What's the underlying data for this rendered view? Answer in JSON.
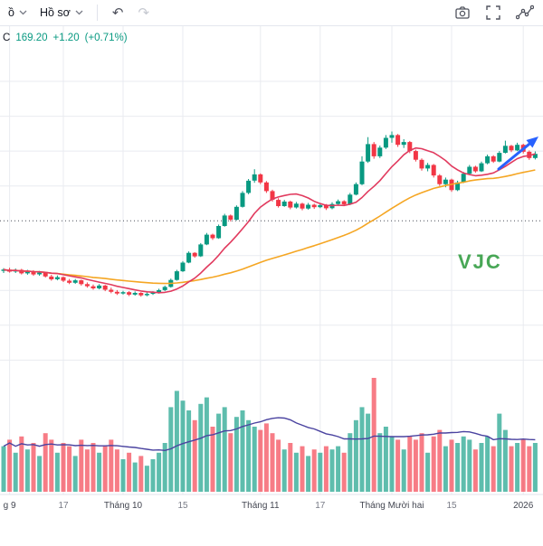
{
  "toolbar": {
    "menus": [
      {
        "label": "ồ"
      },
      {
        "label": "Hồ sơ"
      }
    ],
    "undo_icon": "↶",
    "redo_icon": "↷",
    "right_icons": [
      "screenshot-icon",
      "fullscreen-icon",
      "drawing-tools-icon"
    ]
  },
  "legend": {
    "close_label": "C",
    "close": "169.20",
    "change": "+1.20",
    "change_pct": "(+0.71%)",
    "color": "#089981"
  },
  "watermark": "VJC",
  "chart_data": {
    "type": "candlestick",
    "symbol": "VJC",
    "last_close": 169.2,
    "change": 1.2,
    "change_pct": 0.71,
    "price_line": 150,
    "h_gridlines": [
      110,
      120,
      130,
      140,
      160,
      170,
      180,
      190
    ],
    "x_ticks": [
      {
        "index": 1,
        "label": "g 9",
        "major": true
      },
      {
        "index": 10,
        "label": "17",
        "major": false
      },
      {
        "index": 20,
        "label": "Tháng 10",
        "major": true
      },
      {
        "index": 30,
        "label": "15",
        "major": false
      },
      {
        "index": 43,
        "label": "Tháng 11",
        "major": true
      },
      {
        "index": 53,
        "label": "17",
        "major": false
      },
      {
        "index": 65,
        "label": "Tháng Mười hai",
        "major": true
      },
      {
        "index": 75,
        "label": "15",
        "major": false
      },
      {
        "index": 87,
        "label": "2026",
        "major": true
      }
    ],
    "overlays": {
      "ma_fast": {
        "window": 10,
        "color": "#e13a5e"
      },
      "ma_slow": {
        "window": 40,
        "color": "#f5a623"
      },
      "vol_ma": {
        "window": 20,
        "color": "#4a43a0"
      }
    },
    "colors": {
      "up": "#089981",
      "down": "#f23645",
      "grid": "#e9ebf0",
      "dotted": "#4a4e59",
      "watermark": "#3fa34d",
      "arrow": "#2962ff",
      "tick_minor": "#787b86",
      "tick_major": "#434651",
      "axis_line": "#e0e3eb"
    },
    "candles": [
      [
        135.6,
        136.4,
        135.0,
        136.0,
        1.4
      ],
      [
        136.0,
        136.5,
        135.1,
        135.4,
        1.6
      ],
      [
        135.4,
        136.3,
        135.0,
        135.9,
        1.2
      ],
      [
        135.9,
        136.2,
        134.6,
        134.9,
        1.7
      ],
      [
        134.9,
        135.9,
        134.5,
        135.5,
        1.3
      ],
      [
        135.5,
        135.8,
        134.2,
        134.6,
        1.5
      ],
      [
        134.6,
        135.6,
        134.2,
        135.1,
        1.1
      ],
      [
        135.1,
        135.4,
        133.7,
        134.0,
        1.8
      ],
      [
        134.0,
        134.5,
        132.8,
        133.2,
        1.6
      ],
      [
        133.2,
        134.3,
        132.9,
        133.8,
        1.2
      ],
      [
        133.8,
        134.0,
        132.4,
        132.8,
        1.5
      ],
      [
        132.8,
        133.3,
        131.8,
        132.2,
        1.4
      ],
      [
        132.2,
        133.3,
        131.9,
        132.9,
        1.1
      ],
      [
        132.9,
        133.1,
        131.4,
        131.8,
        1.6
      ],
      [
        131.8,
        132.3,
        130.8,
        131.2,
        1.3
      ],
      [
        131.2,
        131.7,
        130.2,
        130.6,
        1.5
      ],
      [
        130.6,
        131.8,
        130.3,
        131.4,
        1.2
      ],
      [
        131.4,
        131.6,
        129.8,
        130.2,
        1.4
      ],
      [
        130.2,
        130.8,
        129.2,
        129.6,
        1.6
      ],
      [
        129.6,
        130.1,
        128.7,
        129.1,
        1.3
      ],
      [
        129.1,
        129.9,
        128.8,
        129.5,
        1.0
      ],
      [
        129.5,
        129.8,
        128.4,
        128.8,
        1.2
      ],
      [
        128.8,
        129.7,
        128.5,
        129.3,
        0.9
      ],
      [
        129.3,
        129.5,
        128.2,
        128.6,
        1.1
      ],
      [
        128.6,
        129.4,
        128.3,
        129.0,
        0.8
      ],
      [
        129.0,
        129.8,
        128.7,
        129.4,
        1.0
      ],
      [
        129.4,
        130.5,
        129.1,
        130.1,
        1.2
      ],
      [
        130.1,
        131.4,
        129.8,
        131.0,
        1.5
      ],
      [
        131.0,
        133.4,
        130.8,
        133.0,
        2.6
      ],
      [
        133.0,
        135.9,
        132.8,
        135.5,
        3.1
      ],
      [
        135.5,
        138.4,
        135.3,
        138.0,
        2.8
      ],
      [
        138.0,
        141.2,
        137.8,
        140.8,
        2.5
      ],
      [
        140.8,
        141.0,
        139.4,
        139.8,
        2.2
      ],
      [
        139.8,
        143.6,
        139.6,
        143.2,
        2.7
      ],
      [
        143.2,
        146.5,
        143.0,
        146.0,
        2.9
      ],
      [
        146.0,
        146.3,
        144.5,
        145.0,
        2.0
      ],
      [
        145.0,
        148.9,
        144.8,
        148.5,
        2.4
      ],
      [
        148.5,
        152.0,
        148.3,
        151.5,
        2.6
      ],
      [
        151.5,
        151.8,
        149.8,
        150.3,
        1.8
      ],
      [
        150.3,
        154.4,
        150.1,
        154.0,
        2.3
      ],
      [
        154.0,
        158.5,
        153.8,
        158.0,
        2.5
      ],
      [
        158.0,
        162.0,
        157.6,
        161.5,
        2.2
      ],
      [
        161.5,
        164.8,
        160.9,
        163.3,
        2.0
      ],
      [
        163.3,
        163.6,
        160.5,
        161.0,
        1.9
      ],
      [
        161.0,
        161.4,
        158.0,
        158.5,
        2.1
      ],
      [
        158.5,
        158.9,
        155.5,
        156.0,
        1.8
      ],
      [
        156.0,
        156.5,
        153.8,
        154.2,
        1.6
      ],
      [
        154.2,
        156.0,
        154.0,
        155.5,
        1.3
      ],
      [
        155.5,
        155.8,
        153.3,
        153.8,
        1.5
      ],
      [
        153.8,
        155.4,
        153.5,
        154.9,
        1.2
      ],
      [
        154.9,
        155.2,
        153.0,
        153.5,
        1.4
      ],
      [
        153.5,
        155.1,
        153.2,
        154.6,
        1.1
      ],
      [
        154.6,
        154.9,
        153.4,
        153.9,
        1.3
      ],
      [
        153.9,
        155.0,
        153.6,
        154.5,
        1.2
      ],
      [
        154.5,
        154.8,
        153.1,
        153.6,
        1.4
      ],
      [
        153.6,
        155.3,
        153.3,
        154.8,
        1.3
      ],
      [
        154.8,
        156.1,
        154.5,
        155.6,
        1.4
      ],
      [
        155.6,
        155.9,
        154.2,
        154.7,
        1.2
      ],
      [
        154.7,
        158.0,
        154.5,
        157.5,
        1.8
      ],
      [
        157.5,
        161.0,
        157.3,
        160.5,
        2.2
      ],
      [
        160.5,
        168.5,
        160.2,
        167.0,
        2.6
      ],
      [
        167.0,
        174.0,
        166.6,
        172.0,
        2.4
      ],
      [
        172.0,
        172.6,
        167.8,
        168.5,
        3.5
      ],
      [
        168.5,
        171.6,
        168.0,
        171.0,
        1.8
      ],
      [
        171.0,
        174.6,
        170.6,
        173.8,
        2.0
      ],
      [
        173.8,
        175.6,
        172.4,
        174.6,
        1.7
      ],
      [
        174.6,
        174.9,
        171.2,
        171.8,
        1.6
      ],
      [
        171.8,
        173.4,
        170.9,
        172.6,
        1.3
      ],
      [
        172.6,
        172.9,
        169.4,
        170.0,
        1.7
      ],
      [
        170.0,
        170.4,
        167.0,
        167.5,
        1.6
      ],
      [
        167.5,
        167.9,
        164.4,
        165.0,
        1.8
      ],
      [
        165.0,
        166.6,
        164.2,
        166.0,
        1.2
      ],
      [
        166.0,
        166.3,
        162.4,
        163.0,
        1.7
      ],
      [
        163.0,
        163.4,
        160.0,
        160.5,
        1.9
      ],
      [
        160.5,
        162.4,
        159.6,
        161.8,
        1.4
      ],
      [
        161.8,
        162.1,
        158.3,
        158.8,
        1.6
      ],
      [
        158.8,
        161.5,
        158.5,
        161.0,
        1.5
      ],
      [
        161.0,
        164.0,
        160.8,
        163.5,
        1.7
      ],
      [
        163.5,
        166.0,
        163.2,
        165.5,
        1.6
      ],
      [
        165.5,
        165.8,
        163.8,
        164.2,
        1.3
      ],
      [
        164.2,
        167.0,
        164.0,
        166.5,
        1.5
      ],
      [
        166.5,
        169.0,
        166.2,
        168.5,
        1.7
      ],
      [
        168.5,
        168.8,
        166.6,
        167.0,
        1.4
      ],
      [
        167.0,
        170.0,
        166.8,
        169.5,
        2.4
      ],
      [
        169.5,
        173.0,
        169.3,
        171.5,
        1.9
      ],
      [
        171.5,
        171.8,
        169.7,
        170.2,
        1.4
      ],
      [
        170.2,
        172.4,
        170.0,
        171.8,
        1.5
      ],
      [
        171.8,
        172.1,
        169.3,
        169.8,
        1.6
      ],
      [
        169.8,
        170.2,
        167.5,
        168.0,
        1.4
      ],
      [
        168.0,
        169.9,
        167.6,
        169.2,
        1.5
      ]
    ]
  }
}
